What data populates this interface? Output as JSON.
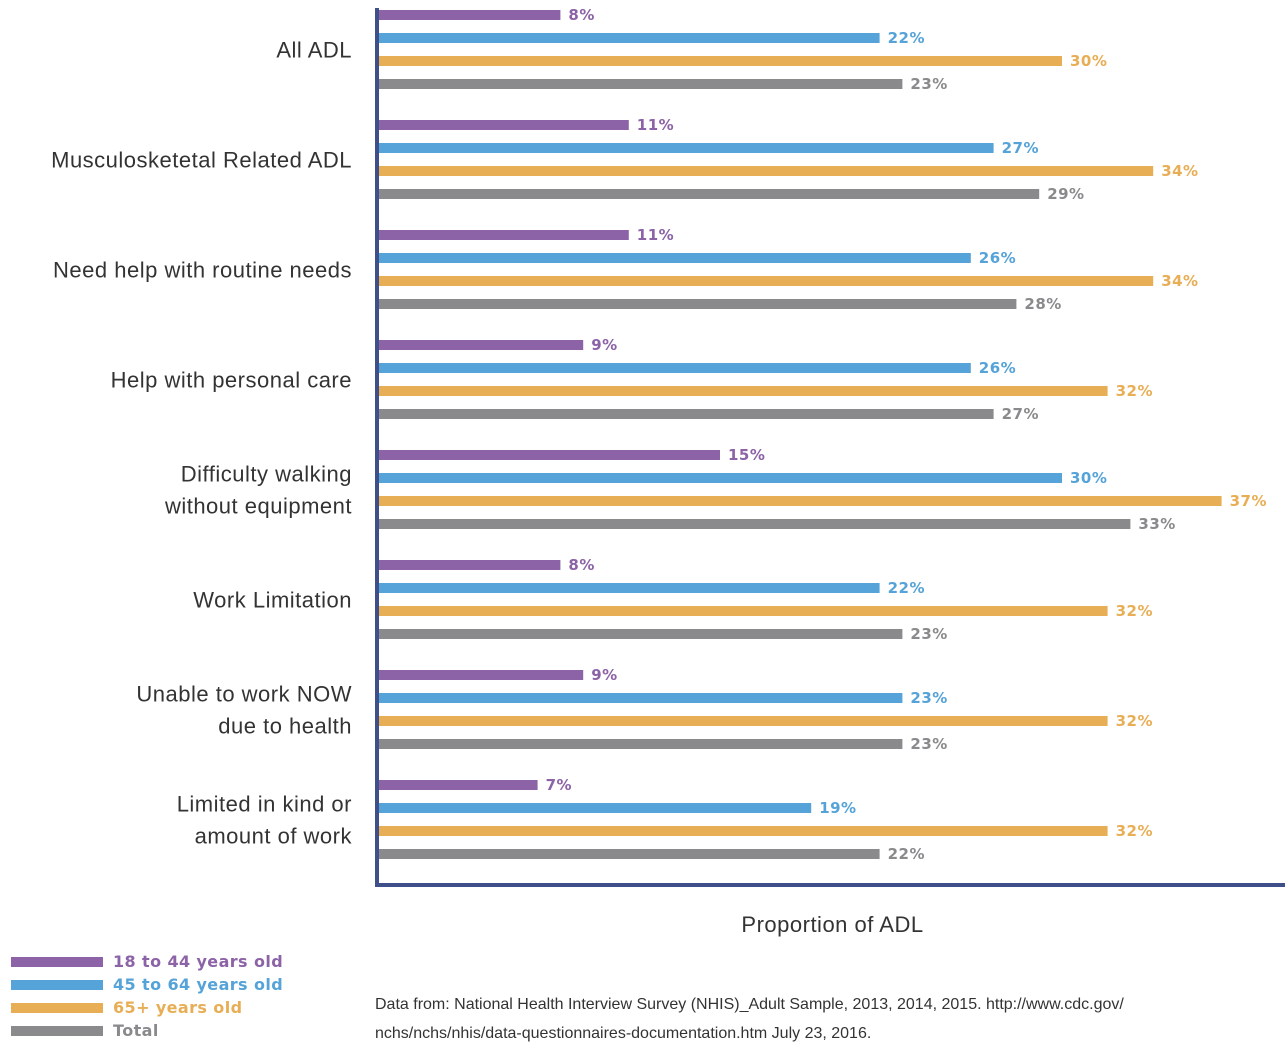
{
  "chart_data": {
    "type": "bar",
    "orientation": "horizontal",
    "categories": [
      [
        "All ADL"
      ],
      [
        "Musculosketetal Related ADL"
      ],
      [
        "Need help with routine needs"
      ],
      [
        "Help with personal care"
      ],
      [
        "Difficulty walking",
        "without equipment"
      ],
      [
        "Work Limitation"
      ],
      [
        "Unable to work NOW",
        "due to health"
      ],
      [
        "Limited in kind or",
        "amount of work"
      ]
    ],
    "series": [
      {
        "name": "18 to 44 years old",
        "color": "#8c63a6",
        "values": [
          8,
          11,
          11,
          9,
          15,
          8,
          9,
          7
        ]
      },
      {
        "name": "45 to 64 years old",
        "color": "#55a3d8",
        "values": [
          22,
          27,
          26,
          26,
          30,
          22,
          23,
          19
        ]
      },
      {
        "name": "65+ years old",
        "color": "#e8ae55",
        "values": [
          30,
          34,
          34,
          32,
          37,
          32,
          32,
          32
        ]
      },
      {
        "name": "Total",
        "color": "#8a8a8c",
        "values": [
          23,
          29,
          28,
          27,
          33,
          23,
          23,
          22
        ]
      }
    ],
    "value_suffix": "%",
    "xlabel": "Proportion of ADL",
    "xlim": [
      0,
      40
    ],
    "axis_color": "#3e4f8a",
    "legend_position": "bottom-left"
  },
  "source": {
    "line1": "Data from: National Health Interview Survey (NHIS)_Adult Sample, 2013, 2014, 2015. http://www.cdc.gov/",
    "line2": "nchs/nchs/nhis/data-questionnaires-documentation.htm July 23, 2016."
  }
}
